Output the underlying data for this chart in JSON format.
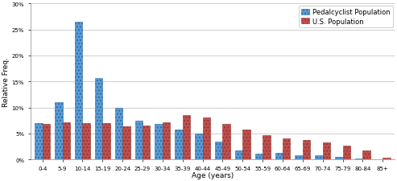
{
  "categories": [
    "0-4",
    "5-9",
    "10-14",
    "15-19",
    "20-24",
    "25-29",
    "30-34",
    "35-39",
    "40-44",
    "45-49",
    "50-54",
    "55-59",
    "60-64",
    "65-69",
    "70-74",
    "75-79",
    "80-84",
    "85+"
  ],
  "pedalcyclist": [
    0.07,
    0.11,
    0.265,
    0.156,
    0.1,
    0.075,
    0.068,
    0.058,
    0.05,
    0.035,
    0.018,
    0.011,
    0.013,
    0.008,
    0.008,
    0.005,
    0.002,
    0.001
  ],
  "us_population": [
    0.068,
    0.072,
    0.07,
    0.07,
    0.063,
    0.065,
    0.072,
    0.085,
    0.08,
    0.068,
    0.058,
    0.046,
    0.04,
    0.037,
    0.033,
    0.027,
    0.018,
    0.004
  ],
  "pedalcyclist_color": "#5B9BD5",
  "us_population_color": "#C0504D",
  "pedalcyclist_edge": "#2E6DA4",
  "us_population_edge": "#943634",
  "legend_pedalcyclist": "Pedalcyclist Population",
  "legend_us": "U.S. Population",
  "ylabel": "Relative Freq.",
  "xlabel": "Age (years)",
  "ylim": [
    0,
    0.3
  ],
  "yticks": [
    0.0,
    0.05,
    0.1,
    0.15,
    0.2,
    0.25,
    0.3
  ],
  "ytick_labels": [
    "0%",
    "5%",
    "10%",
    "15%",
    "20%",
    "25%",
    "30%"
  ],
  "background_color": "#FFFFFF",
  "grid_color": "#BBBBBB",
  "bar_width": 0.38,
  "tick_fontsize": 5.0,
  "label_fontsize": 6.5,
  "legend_fontsize": 6.0
}
